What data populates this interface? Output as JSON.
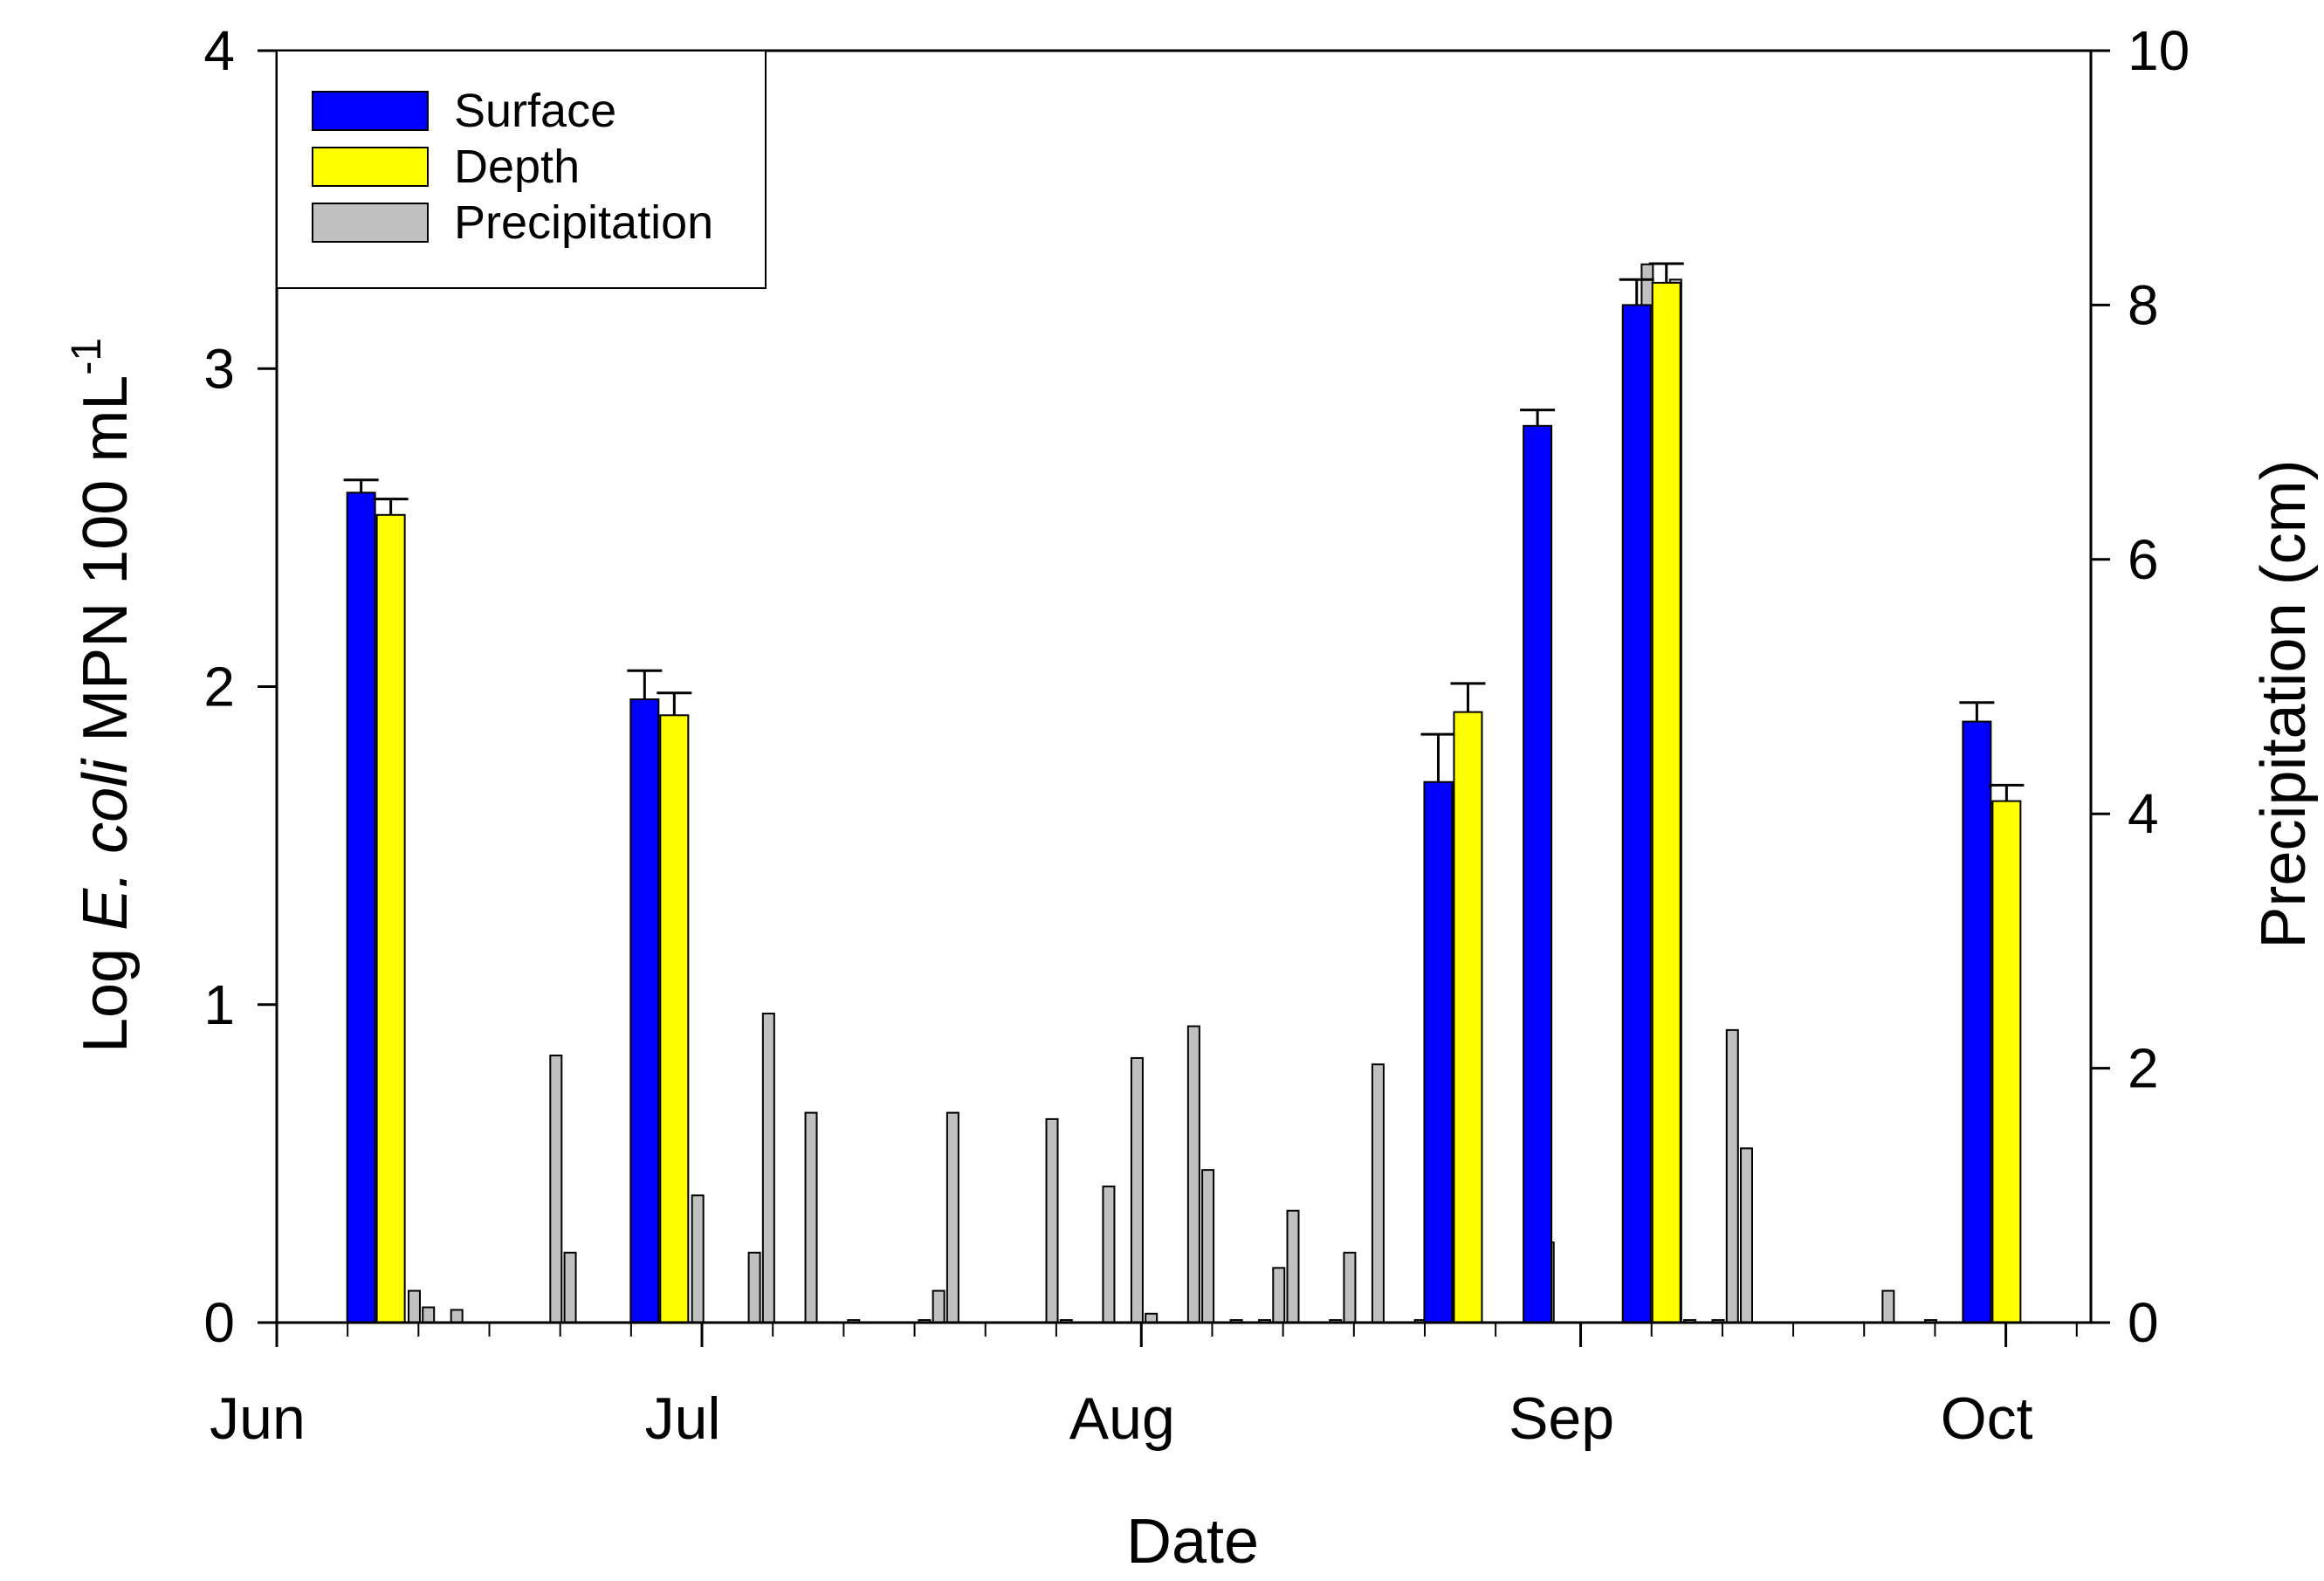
{
  "chart_data": {
    "type": "bar",
    "xlabel": "Date",
    "ylabel": {
      "prefix": "Log ",
      "italic": "E. coli",
      "middle": " MPN 100 mL",
      "superscript": "-1"
    },
    "y2label": "Precipitation (cm)",
    "ylim": [
      0,
      4
    ],
    "yticks": [
      "0",
      "1",
      "2",
      "3",
      "4"
    ],
    "y2lim": [
      0,
      10
    ],
    "y2ticks": [
      "0",
      "2",
      "4",
      "6",
      "8",
      "10"
    ],
    "x_domain_days": [
      0,
      128
    ],
    "months": [
      {
        "label": "Jun",
        "day": 0
      },
      {
        "label": "Jul",
        "day": 30
      },
      {
        "label": "Aug",
        "day": 61
      },
      {
        "label": "Sep",
        "day": 92
      },
      {
        "label": "Oct",
        "day": 122
      }
    ],
    "minor_tick_days": [
      5,
      10,
      15,
      20,
      25,
      35,
      40,
      45,
      50,
      55,
      66,
      71,
      76,
      81,
      86,
      97,
      102,
      107,
      112,
      117,
      127
    ],
    "legend": [
      {
        "label": "Surface",
        "color": "#0000ff"
      },
      {
        "label": "Depth",
        "color": "#ffff00"
      },
      {
        "label": "Precipitation",
        "color": "#c0c0c0"
      }
    ],
    "sampling_dates_day": [
      7,
      27,
      83,
      90,
      97,
      121
    ],
    "series": [
      {
        "name": "Surface",
        "color": "#0000ff",
        "axis": "left",
        "points": [
          {
            "day": 7,
            "value": 2.61,
            "error": 0.04
          },
          {
            "day": 27,
            "value": 1.96,
            "error": 0.09
          },
          {
            "day": 83,
            "value": 1.7,
            "error": 0.15
          },
          {
            "day": 90,
            "value": 2.82,
            "error": 0.05
          },
          {
            "day": 97,
            "value": 3.2,
            "error": 0.08
          },
          {
            "day": 121,
            "value": 1.89,
            "error": 0.06
          }
        ]
      },
      {
        "name": "Depth",
        "color": "#ffff00",
        "axis": "left",
        "points": [
          {
            "day": 7,
            "value": 2.54,
            "error": 0.05
          },
          {
            "day": 27,
            "value": 1.91,
            "error": 0.07
          },
          {
            "day": 83,
            "value": 1.92,
            "error": 0.09
          },
          {
            "day": 97,
            "value": 3.27,
            "error": 0.06
          },
          {
            "day": 121,
            "value": 1.64,
            "error": 0.05
          }
        ]
      },
      {
        "name": "Precipitation",
        "color": "#c0c0c0",
        "axis": "right",
        "points": [
          {
            "day": 5.7,
            "value": 0.17
          },
          {
            "day": 6.7,
            "value": 1.37
          },
          {
            "day": 7.7,
            "value": 0.87
          },
          {
            "day": 9.7,
            "value": 0.25
          },
          {
            "day": 10.7,
            "value": 0.12
          },
          {
            "day": 12.7,
            "value": 0.1
          },
          {
            "day": 19.7,
            "value": 2.1
          },
          {
            "day": 20.7,
            "value": 0.55
          },
          {
            "day": 25.7,
            "value": 0.02
          },
          {
            "day": 26.7,
            "value": 0.05
          },
          {
            "day": 29.7,
            "value": 1.0
          },
          {
            "day": 33.7,
            "value": 0.55
          },
          {
            "day": 34.7,
            "value": 2.43
          },
          {
            "day": 37.7,
            "value": 1.65
          },
          {
            "day": 40.7,
            "value": 0.02
          },
          {
            "day": 45.7,
            "value": 0.02
          },
          {
            "day": 46.7,
            "value": 0.25
          },
          {
            "day": 47.7,
            "value": 1.65
          },
          {
            "day": 54.7,
            "value": 1.6
          },
          {
            "day": 55.7,
            "value": 0.02
          },
          {
            "day": 58.7,
            "value": 1.07
          },
          {
            "day": 60.7,
            "value": 2.08
          },
          {
            "day": 61.7,
            "value": 0.07
          },
          {
            "day": 64.7,
            "value": 2.33
          },
          {
            "day": 65.7,
            "value": 1.2
          },
          {
            "day": 67.7,
            "value": 0.02
          },
          {
            "day": 69.7,
            "value": 0.02
          },
          {
            "day": 70.7,
            "value": 0.43
          },
          {
            "day": 71.7,
            "value": 0.88
          },
          {
            "day": 74.7,
            "value": 0.02
          },
          {
            "day": 75.7,
            "value": 0.55
          },
          {
            "day": 77.7,
            "value": 2.03
          },
          {
            "day": 80.7,
            "value": 0.02
          },
          {
            "day": 81.7,
            "value": 0.33
          },
          {
            "day": 82.7,
            "value": 0.03
          },
          {
            "day": 89.7,
            "value": 0.63
          },
          {
            "day": 95.7,
            "value": 0.3
          },
          {
            "day": 96.7,
            "value": 8.32
          },
          {
            "day": 97.7,
            "value": 0.6
          },
          {
            "day": 98.7,
            "value": 8.2
          },
          {
            "day": 99.7,
            "value": 0.02
          },
          {
            "day": 101.7,
            "value": 0.02
          },
          {
            "day": 102.7,
            "value": 2.3
          },
          {
            "day": 103.7,
            "value": 1.37
          },
          {
            "day": 113.7,
            "value": 0.25
          },
          {
            "day": 116.7,
            "value": 0.02
          },
          {
            "day": 121.7,
            "value": 0.15
          }
        ]
      }
    ]
  }
}
